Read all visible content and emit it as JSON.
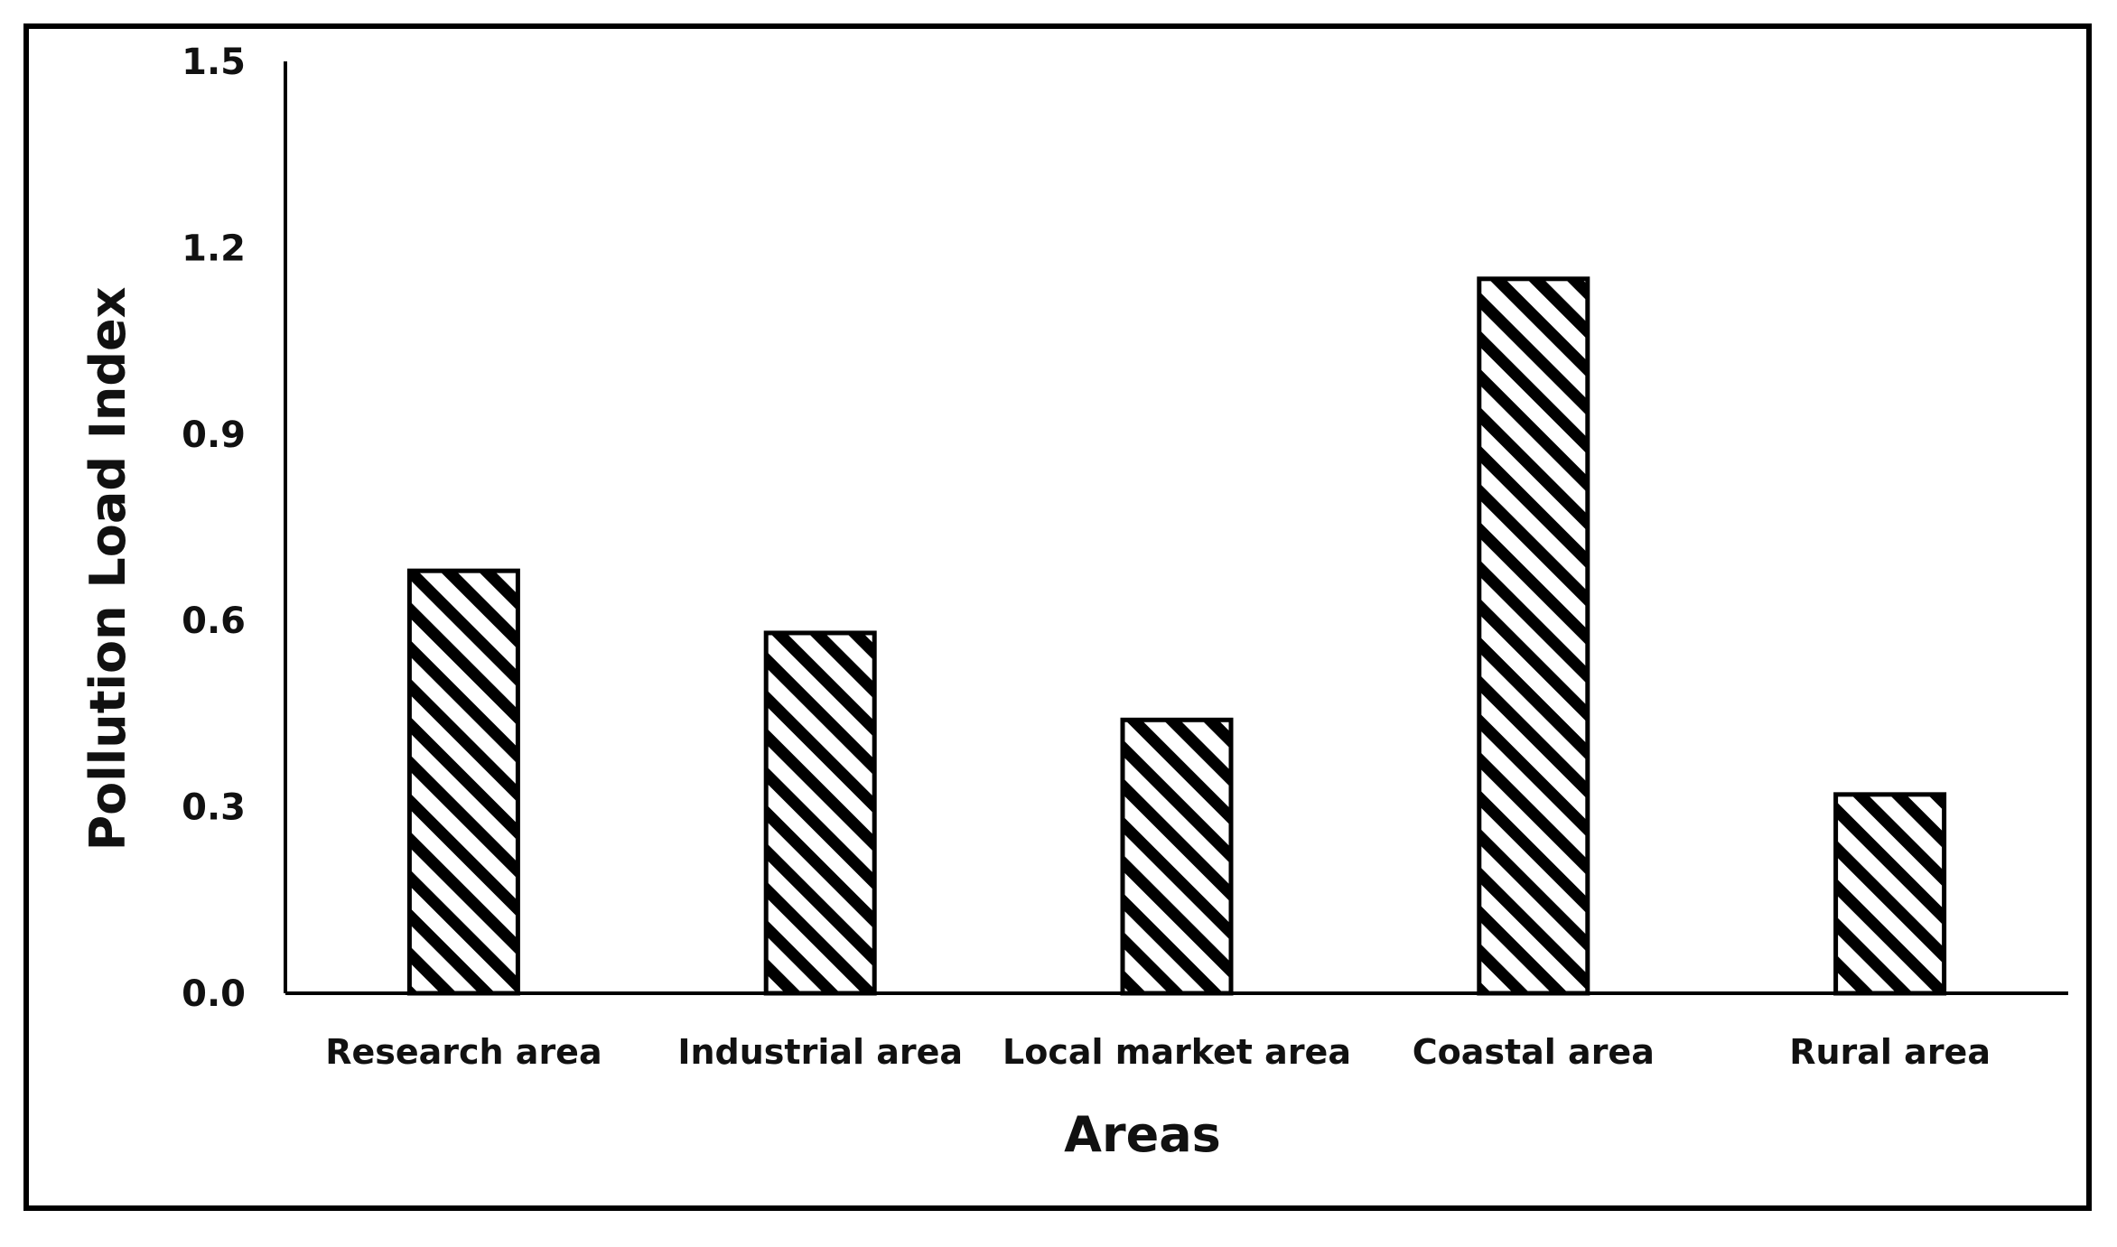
{
  "chart_data": {
    "type": "bar",
    "title": "",
    "xlabel": "Areas",
    "ylabel": "Pollution Load Index",
    "categories": [
      "Research area",
      "Industrial area",
      "Local market area",
      "Coastal area",
      "Rural area"
    ],
    "values": [
      0.68,
      0.58,
      0.44,
      1.15,
      0.32
    ],
    "ylim": [
      0.0,
      1.5
    ],
    "yticks": [
      "0.0",
      "0.3",
      "0.6",
      "0.9",
      "1.2",
      "1.5"
    ],
    "ytick_values": [
      0.0,
      0.3,
      0.6,
      0.9,
      1.2,
      1.5
    ],
    "grid": false,
    "legend": "none",
    "bar_fill": "diagonal-hatch",
    "colors": {
      "bar_stroke": "#000000",
      "hatch": "#000000",
      "background": "#ffffff"
    }
  }
}
